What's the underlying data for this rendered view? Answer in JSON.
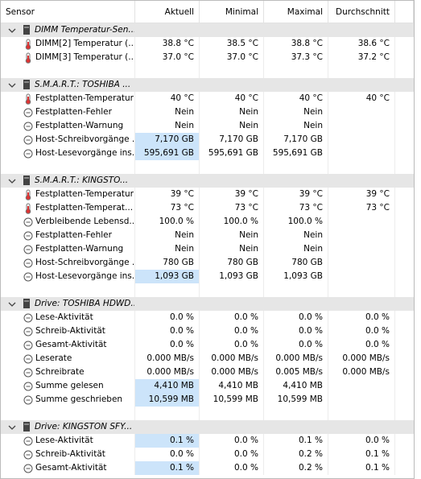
{
  "columns": [
    "Sensor",
    "Aktuell",
    "Minimal",
    "Maximal",
    "Durchschnitt"
  ],
  "groups": [
    {
      "name": "DIMM Temperatur-Sen...",
      "rows": [
        {
          "sensor": "DIMM[2] Temperatur (...",
          "values": [
            "38.8 °C",
            "38.5 °C",
            "38.8 °C",
            "38.6 °C"
          ]
        },
        {
          "sensor": "DIMM[3] Temperatur (...",
          "values": [
            "37.0 °C",
            "37.0 °C",
            "37.3 °C",
            "37.2 °C"
          ]
        }
      ]
    },
    {
      "name": "S.M.A.R.T.: TOSHIBA ...",
      "rows": [
        {
          "sensor": "Festplatten-Temperatur",
          "values": [
            "40 °C",
            "40 °C",
            "40 °C",
            "40 °C"
          ]
        },
        {
          "sensor": "Festplatten-Fehler",
          "values": [
            "Nein",
            "Nein",
            "Nein",
            null
          ]
        },
        {
          "sensor": "Festplatten-Warnung",
          "values": [
            "Nein",
            "Nein",
            "Nein",
            null
          ]
        },
        {
          "sensor": "Host-Schreibvorgänge ...",
          "values": [
            "7,170 GB",
            "7,170 GB",
            "7,170 GB",
            null
          ],
          "highlight": true
        },
        {
          "sensor": "Host-Lesevorgänge ins...",
          "values": [
            "595,691 GB",
            "595,691 GB",
            "595,691 GB",
            null
          ],
          "highlight": true
        }
      ]
    },
    {
      "name": "S.M.A.R.T.: KINGSTO...",
      "rows": [
        {
          "sensor": "Festplatten-Temperatur",
          "values": [
            "39 °C",
            "39 °C",
            "39 °C",
            "39 °C"
          ]
        },
        {
          "sensor": "Festplatten-Temperat...",
          "values": [
            "73 °C",
            "73 °C",
            "73 °C",
            "73 °C"
          ]
        },
        {
          "sensor": "Verbleibende Lebensd...",
          "values": [
            "100.0 %",
            "100.0 %",
            "100.0 %",
            null
          ]
        },
        {
          "sensor": "Festplatten-Fehler",
          "values": [
            "Nein",
            "Nein",
            "Nein",
            null
          ]
        },
        {
          "sensor": "Festplatten-Warnung",
          "values": [
            "Nein",
            "Nein",
            "Nein",
            null
          ]
        },
        {
          "sensor": "Host-Schreibvorgänge ...",
          "values": [
            "780 GB",
            "780 GB",
            "780 GB",
            null
          ]
        },
        {
          "sensor": "Host-Lesevorgänge ins...",
          "values": [
            "1,093 GB",
            "1,093 GB",
            "1,093 GB",
            null
          ],
          "highlight": true
        }
      ]
    },
    {
      "name": "Drive: TOSHIBA HDWD...",
      "rows": [
        {
          "sensor": "Lese-Aktivität",
          "values": [
            "0.0 %",
            "0.0 %",
            "0.0 %",
            "0.0 %"
          ]
        },
        {
          "sensor": "Schreib-Aktivität",
          "values": [
            "0.0 %",
            "0.0 %",
            "0.0 %",
            "0.0 %"
          ]
        },
        {
          "sensor": "Gesamt-Aktivität",
          "values": [
            "0.0 %",
            "0.0 %",
            "0.0 %",
            "0.0 %"
          ]
        },
        {
          "sensor": "Leserate",
          "values": [
            "0.000 MB/s",
            "0.000 MB/s",
            "0.000 MB/s",
            "0.000 MB/s"
          ]
        },
        {
          "sensor": "Schreibrate",
          "values": [
            "0.000 MB/s",
            "0.000 MB/s",
            "0.005 MB/s",
            "0.000 MB/s"
          ]
        },
        {
          "sensor": "Summe gelesen",
          "values": [
            "4,410 MB",
            "4,410 MB",
            "4,410 MB",
            null
          ],
          "highlight": true
        },
        {
          "sensor": "Summe geschrieben",
          "values": [
            "10,599 MB",
            "10,599 MB",
            "10,599 MB",
            null
          ],
          "highlight": true
        }
      ]
    },
    {
      "name": "Drive: KINGSTON SFY...",
      "rows": [
        {
          "sensor": "Lese-Aktivität",
          "values": [
            "0.1 %",
            "0.0 %",
            "0.1 %",
            "0.0 %"
          ],
          "highlight": true
        },
        {
          "sensor": "Schreib-Aktivität",
          "values": [
            "0.0 %",
            "0.0 %",
            "0.2 %",
            "0.1 %"
          ]
        },
        {
          "sensor": "Gesamt-Aktivität",
          "values": [
            "0.1 %",
            "0.0 %",
            "0.2 %",
            "0.1 %"
          ],
          "highlight": true
        }
      ]
    }
  ]
}
